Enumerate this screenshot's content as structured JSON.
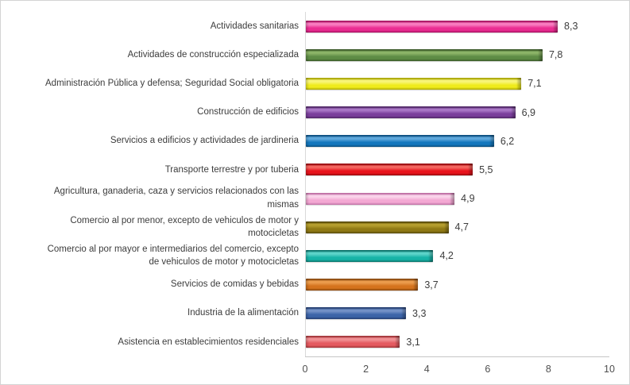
{
  "chart_data": {
    "type": "bar",
    "orientation": "horizontal",
    "title": "",
    "xlabel": "",
    "ylabel": "",
    "xlim": [
      0,
      10
    ],
    "x_ticks": [
      0,
      2,
      4,
      6,
      8,
      10
    ],
    "grid": false,
    "legend_position": "none",
    "decimal_separator": ",",
    "categories": [
      "Actividades sanitarias",
      "Actividades de construcción especializada",
      "Administración Pública y defensa; Seguridad Social obligatoria",
      "Construcción de edificios",
      "Servicios a edificios y actividades de jardineria",
      "Transporte terrestre y por tuberia",
      "Agricultura, ganaderia, caza y servicios relacionados con las\nmismas",
      "Comercio al por menor, excepto de vehiculos de motor y\nmotocicletas",
      "Comercio al por mayor e intermediarios del comercio, excepto\nde vehiculos de motor y motocicletas",
      "Servicios de comidas y bebidas",
      "Industria de la alimentación",
      "Asistencia en establecimientos residenciales"
    ],
    "values": [
      8.3,
      7.8,
      7.1,
      6.9,
      6.2,
      5.5,
      4.9,
      4.7,
      4.2,
      3.7,
      3.3,
      3.1
    ],
    "value_labels": [
      "8,3",
      "7,8",
      "7,1",
      "6,9",
      "6,2",
      "5,5",
      "4,9",
      "4,7",
      "4,2",
      "3,7",
      "3,3",
      "3,1"
    ],
    "bar_colors": [
      {
        "main": "#EB2D92",
        "highlight": "#F97CC0",
        "dark": "#A81261"
      },
      {
        "main": "#5E8C45",
        "highlight": "#8CB468",
        "dark": "#3B5A28"
      },
      {
        "main": "#EFEB1B",
        "highlight": "#F8F578",
        "dark": "#ABA708"
      },
      {
        "main": "#7A3E9B",
        "highlight": "#A977C6",
        "dark": "#4E2465"
      },
      {
        "main": "#1377BD",
        "highlight": "#5FA8DC",
        "dark": "#0B4E7F"
      },
      {
        "main": "#E8131C",
        "highlight": "#F4655F",
        "dark": "#96090D"
      },
      {
        "main": "#F3A8D3",
        "highlight": "#FAD4EA",
        "dark": "#BF6FA4"
      },
      {
        "main": "#8F7914",
        "highlight": "#B59E2E",
        "dark": "#574A0A"
      },
      {
        "main": "#17B3A7",
        "highlight": "#5CD3C9",
        "dark": "#0B726A"
      },
      {
        "main": "#D5731D",
        "highlight": "#EB9C4D",
        "dark": "#8A480E"
      },
      {
        "main": "#3C64A8",
        "highlight": "#7391C7",
        "dark": "#243E72"
      },
      {
        "main": "#E45A60",
        "highlight": "#F09094",
        "dark": "#A23539"
      }
    ]
  },
  "frame": {
    "border_color": "#D3D3D3",
    "axis_line_color": "#C6C6C6",
    "category_axis_line_color": "#D9D9D9",
    "label_text_color": "#3C3C3C",
    "tick_text_color": "#4F4F4F"
  }
}
